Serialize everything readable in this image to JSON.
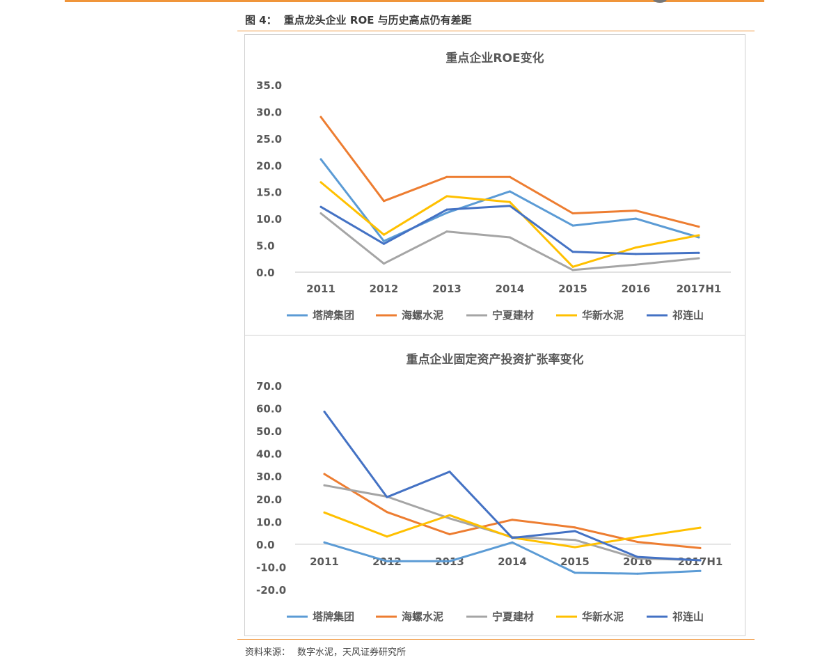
{
  "figure": {
    "label": "图 4：",
    "caption": "重点龙头企业 ROE 与历史高点仍有差距"
  },
  "source": {
    "label": "资料来源：",
    "text": "数字水泥，天风证券研究所"
  },
  "chart_data": [
    {
      "type": "line",
      "title": "重点企业ROE变化",
      "xlabel": "",
      "ylabel": "",
      "categories": [
        "2011",
        "2012",
        "2013",
        "2014",
        "2015",
        "2016",
        "2017H1"
      ],
      "ylim": [
        0,
        35
      ],
      "yticks": [
        "0.0",
        "5.0",
        "10.0",
        "15.0",
        "20.0",
        "25.0",
        "30.0",
        "35.0"
      ],
      "grid": false,
      "legend_position": "bottom",
      "series": [
        {
          "name": "塔牌集团",
          "color": "#5b9bd5",
          "values": [
            21.1,
            5.8,
            11.1,
            15.1,
            8.7,
            10.0,
            6.5
          ]
        },
        {
          "name": "海螺水泥",
          "color": "#ed7d31",
          "values": [
            29.0,
            13.3,
            17.8,
            17.8,
            11.0,
            11.5,
            8.5
          ]
        },
        {
          "name": "宁夏建材",
          "color": "#a5a5a5",
          "values": [
            11.0,
            1.6,
            7.6,
            6.5,
            0.4,
            1.4,
            2.6
          ]
        },
        {
          "name": "华新水泥",
          "color": "#ffc000",
          "values": [
            16.8,
            7.0,
            14.2,
            13.1,
            1.0,
            4.6,
            6.9
          ]
        },
        {
          "name": "祁连山",
          "color": "#4472c4",
          "values": [
            12.2,
            5.3,
            11.7,
            12.4,
            3.8,
            3.4,
            3.6
          ]
        }
      ]
    },
    {
      "type": "line",
      "title": "重点企业固定资产投资扩张率变化",
      "xlabel": "",
      "ylabel": "",
      "categories": [
        "2011",
        "2012",
        "2013",
        "2014",
        "2015",
        "2016",
        "2017H1"
      ],
      "ylim": [
        -20,
        70
      ],
      "yticks": [
        "-20.0",
        "-10.0",
        "0.0",
        "10.0",
        "20.0",
        "30.0",
        "40.0",
        "50.0",
        "60.0",
        "70.0"
      ],
      "grid": false,
      "legend_position": "bottom",
      "series": [
        {
          "name": "塔牌集团",
          "color": "#5b9bd5",
          "values": [
            0.8,
            -7.5,
            -7.5,
            0.8,
            -12.6,
            -13.0,
            -11.8
          ]
        },
        {
          "name": "海螺水泥",
          "color": "#ed7d31",
          "values": [
            31.0,
            14.2,
            4.4,
            10.8,
            7.4,
            1.0,
            -1.7
          ]
        },
        {
          "name": "宁夏建材",
          "color": "#a5a5a5",
          "values": [
            26.0,
            21.0,
            11.4,
            3.2,
            1.9,
            -6.3,
            -7.0
          ]
        },
        {
          "name": "华新水泥",
          "color": "#ffc000",
          "values": [
            14.0,
            3.4,
            12.8,
            2.9,
            -1.3,
            3.2,
            7.3
          ]
        },
        {
          "name": "祁连山",
          "color": "#4472c4",
          "values": [
            58.5,
            20.8,
            32.0,
            2.8,
            5.8,
            -5.6,
            -7.1
          ]
        }
      ]
    }
  ]
}
